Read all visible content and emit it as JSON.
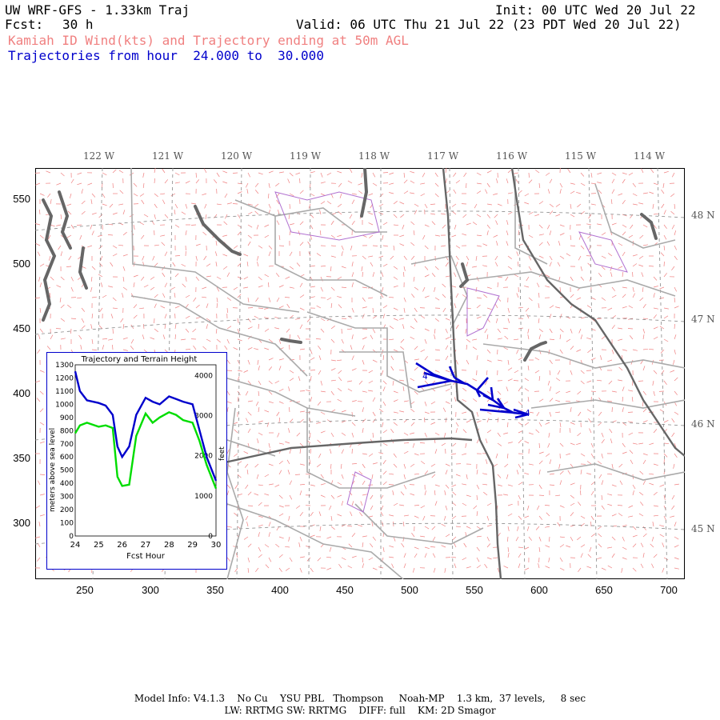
{
  "header": {
    "title": "UW WRF-GFS - 1.33km Traj",
    "init": "Init: 00 UTC Wed 20 Jul 22",
    "fcst_label": "Fcst:",
    "fcst_value": "30 h",
    "valid": "Valid: 06 UTC Thu 21 Jul 22 (23 PDT Wed 20 Jul 22)",
    "subtitle_red": "Kamiah ID Wind(kts) and Trajectory ending at 50m AGL",
    "subtitle_blue": "Trajectories from hour  24.000 to  30.000"
  },
  "map": {
    "lon_labels": [
      "122 W",
      "121 W",
      "120 W",
      "119 W",
      "118 W",
      "117 W",
      "116 W",
      "115 W",
      "114 W"
    ],
    "lat_labels": [
      "48 N",
      "47 N",
      "46 N",
      "45 N"
    ],
    "y_ticks": [
      "550",
      "500",
      "450",
      "400",
      "350",
      "300"
    ],
    "x_ticks": [
      "250",
      "300",
      "350",
      "400",
      "450",
      "500",
      "550",
      "600",
      "650",
      "700"
    ],
    "traj_labels": [
      "4",
      "4"
    ],
    "colors": {
      "wind_barbs": "#f08080",
      "trajectory": "#0000cc",
      "coast": "#666666",
      "state_lines": "#666666",
      "county_lines": "#aaaaaa",
      "grid": "#888888"
    }
  },
  "inset": {
    "title": "Trajectory and Terrain Height",
    "ylabel_left": "meters above sea level",
    "ylabel_right": "feet",
    "xlabel": "Fcst Hour",
    "y_left_ticks": [
      "1300",
      "1200",
      "1100",
      "1000",
      "900",
      "800",
      "700",
      "600",
      "500",
      "400",
      "300",
      "200",
      "100",
      "0"
    ],
    "y_right_ticks": [
      "4000",
      "3000",
      "2000",
      "1000",
      "0"
    ],
    "x_ticks": [
      "24",
      "25",
      "26",
      "27",
      "28",
      "29",
      "30"
    ]
  },
  "chart_data": {
    "type": "line",
    "title": "Trajectory and Terrain Height",
    "xlabel": "Fcst Hour",
    "ylabel": "meters above sea level",
    "xlim": [
      24,
      30
    ],
    "ylim": [
      0,
      1300
    ],
    "x": [
      24.0,
      24.2,
      24.5,
      25.0,
      25.3,
      25.6,
      25.8,
      26.0,
      26.3,
      26.6,
      27.0,
      27.3,
      27.6,
      28.0,
      28.3,
      28.6,
      29.0,
      29.3,
      29.6,
      30.0
    ],
    "series": [
      {
        "color": "#0000cc",
        "values": [
          1250,
          1100,
          1030,
          1010,
          990,
          920,
          680,
          600,
          680,
          920,
          1050,
          1020,
          1000,
          1060,
          1040,
          1020,
          1000,
          800,
          600,
          420
        ]
      },
      {
        "color": "#00dd00",
        "values": [
          780,
          840,
          860,
          830,
          840,
          820,
          450,
          380,
          390,
          760,
          930,
          860,
          900,
          940,
          920,
          880,
          860,
          720,
          540,
          360
        ]
      }
    ]
  },
  "footer": {
    "line1": "Model Info: V4.1.3    No Cu    YSU PBL   Thompson     Noah-MP    1.3 km,  37 levels,     8 sec",
    "line2": "LW: RRTMG SW: RRTMG    DIFF: full    KM: 2D Smagor"
  }
}
